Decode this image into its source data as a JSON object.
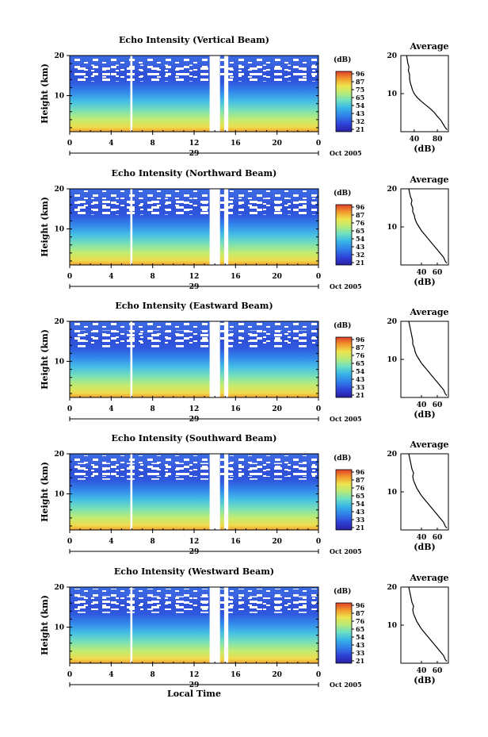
{
  "panels": [
    {
      "title": "Echo Intensity (Vertical Beam)",
      "cbar_ticks": [
        "96",
        "87",
        "75",
        "65",
        "54",
        "43",
        "32",
        "21"
      ],
      "avg_xticks": [
        "40",
        "80"
      ],
      "avg_profile": [
        [
          97,
          0.5
        ],
        [
          94,
          1
        ],
        [
          90,
          2
        ],
        [
          86,
          3
        ],
        [
          80,
          4
        ],
        [
          75,
          5
        ],
        [
          68,
          6
        ],
        [
          60,
          7
        ],
        [
          52,
          8
        ],
        [
          45,
          9
        ],
        [
          40,
          10
        ],
        [
          37,
          11
        ],
        [
          35,
          12
        ],
        [
          33,
          13
        ],
        [
          32,
          14
        ],
        [
          32,
          15
        ],
        [
          30,
          16
        ],
        [
          31,
          17
        ],
        [
          29,
          18
        ],
        [
          28,
          19
        ],
        [
          27,
          20
        ]
      ]
    },
    {
      "title": "Echo Intensity (Northward Beam)",
      "cbar_ticks": [
        "96",
        "87",
        "76",
        "65",
        "54",
        "43",
        "32",
        "21"
      ],
      "avg_xticks": [
        "40",
        "60"
      ],
      "avg_profile": [
        [
          72,
          0.5
        ],
        [
          70,
          1
        ],
        [
          68,
          2
        ],
        [
          64,
          3
        ],
        [
          60,
          4
        ],
        [
          56,
          5
        ],
        [
          52,
          6
        ],
        [
          48,
          7
        ],
        [
          44,
          8
        ],
        [
          40,
          9
        ],
        [
          37,
          10
        ],
        [
          34,
          11
        ],
        [
          32,
          12
        ],
        [
          31,
          13
        ],
        [
          29,
          14
        ],
        [
          29,
          15
        ],
        [
          27,
          16
        ],
        [
          28,
          17
        ],
        [
          26,
          18
        ],
        [
          25,
          19
        ],
        [
          24,
          20
        ]
      ]
    },
    {
      "title": "Echo Intensity (Eastward Beam)",
      "cbar_ticks": [
        "96",
        "87",
        "76",
        "65",
        "54",
        "43",
        "33",
        "21"
      ],
      "avg_xticks": [
        "40",
        "60"
      ],
      "avg_profile": [
        [
          72,
          0.5
        ],
        [
          70,
          1
        ],
        [
          68,
          2
        ],
        [
          64,
          3
        ],
        [
          60,
          4
        ],
        [
          56,
          5
        ],
        [
          52,
          6
        ],
        [
          48,
          7
        ],
        [
          44,
          8
        ],
        [
          40,
          9
        ],
        [
          37,
          10
        ],
        [
          34,
          11
        ],
        [
          32,
          12
        ],
        [
          31,
          13
        ],
        [
          29,
          14
        ],
        [
          29,
          15
        ],
        [
          28,
          16
        ],
        [
          27,
          17
        ],
        [
          26,
          18
        ],
        [
          25,
          19
        ],
        [
          24,
          20
        ]
      ]
    },
    {
      "title": "Echo Intensity (Southward Beam)",
      "cbar_ticks": [
        "96",
        "87",
        "76",
        "65",
        "54",
        "43",
        "33",
        "21"
      ],
      "avg_xticks": [
        "40",
        "60"
      ],
      "avg_profile": [
        [
          72,
          0.5
        ],
        [
          70,
          1
        ],
        [
          68,
          2
        ],
        [
          64,
          3
        ],
        [
          60,
          4
        ],
        [
          56,
          5
        ],
        [
          52,
          6
        ],
        [
          48,
          7
        ],
        [
          44,
          8
        ],
        [
          40,
          9
        ],
        [
          37,
          10
        ],
        [
          34,
          11
        ],
        [
          32,
          12
        ],
        [
          30,
          13
        ],
        [
          29,
          14
        ],
        [
          30,
          15
        ],
        [
          28,
          16
        ],
        [
          27,
          17
        ],
        [
          26,
          18
        ],
        [
          25,
          19
        ],
        [
          24,
          20
        ]
      ]
    },
    {
      "title": "Echo Intensity (Westward Beam)",
      "cbar_ticks": [
        "96",
        "87",
        "76",
        "65",
        "54",
        "43",
        "33",
        "21"
      ],
      "avg_xticks": [
        "40",
        "60"
      ],
      "avg_profile": [
        [
          72,
          0.5
        ],
        [
          70,
          1
        ],
        [
          68,
          2
        ],
        [
          64,
          3
        ],
        [
          60,
          4
        ],
        [
          56,
          5
        ],
        [
          52,
          6
        ],
        [
          48,
          7
        ],
        [
          44,
          8
        ],
        [
          40,
          9
        ],
        [
          37,
          10
        ],
        [
          34,
          11
        ],
        [
          32,
          12
        ],
        [
          30,
          13
        ],
        [
          29,
          14
        ],
        [
          30,
          15
        ],
        [
          28,
          16
        ],
        [
          27,
          17
        ],
        [
          26,
          18
        ],
        [
          25,
          19
        ],
        [
          24,
          20
        ]
      ]
    }
  ],
  "common": {
    "ylabel": "Height (km)",
    "yticks": [
      "20",
      "10"
    ],
    "xticks": [
      "0",
      "4",
      "8",
      "12",
      "16",
      "20",
      "0"
    ],
    "date_day": "29",
    "date_month": "Oct 2005",
    "cbar_unit": "(dB)",
    "avg_title": "Average",
    "avg_xlabel": "(dB)",
    "avg_yticks": [
      "20",
      "10"
    ],
    "xlabel": "Local Time"
  },
  "chart_data": {
    "type": "heatmap",
    "x_axis": {
      "label": "Local Time",
      "range": [
        0,
        24
      ],
      "ticks": [
        0,
        4,
        8,
        12,
        16,
        20,
        24
      ]
    },
    "y_axis": {
      "label": "Height (km)",
      "range": [
        1,
        20
      ]
    },
    "colorbar": {
      "unit": "dB",
      "range": [
        21,
        96
      ]
    },
    "data_gaps_hours": [
      [
        5.85,
        6.05
      ],
      [
        13.5,
        14.5
      ],
      [
        14.9,
        15.3
      ]
    ],
    "average_profiles_db_vs_km": "see panels[].avg_profile"
  },
  "colors": {
    "palette": [
      "#2a1fa0",
      "#2e3fd6",
      "#2f6fe8",
      "#3aa3e8",
      "#49c9e0",
      "#72e0b8",
      "#b4ea78",
      "#e6ea52",
      "#f4c43a",
      "#f08a2a",
      "#e0442a"
    ]
  }
}
